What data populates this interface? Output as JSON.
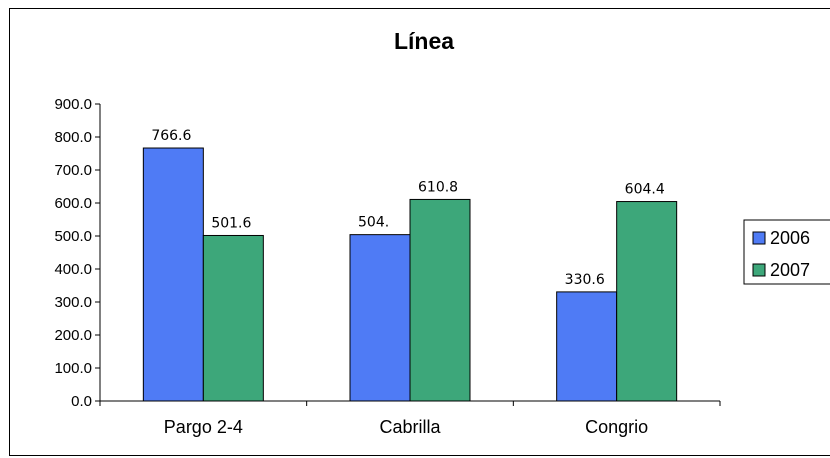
{
  "chart_data": {
    "type": "bar",
    "title": "Línea",
    "categories": [
      "Pargo 2-4",
      "Cabrilla",
      "Congrio"
    ],
    "series": [
      {
        "name": "2006",
        "values": [
          766.6,
          504.1,
          330.6
        ],
        "labels": [
          "766.6",
          "504.",
          "330.6"
        ],
        "color": "#4F7BF5"
      },
      {
        "name": "2007",
        "values": [
          501.6,
          610.8,
          604.4
        ],
        "labels": [
          "501.6",
          "610.8",
          "604.4"
        ],
        "color": "#3DA77A"
      }
    ],
    "ylim": [
      0,
      900
    ],
    "yticks": [
      "0.0",
      "100.0",
      "200.0",
      "300.0",
      "400.0",
      "500.0",
      "600.0",
      "700.0",
      "800.0",
      "900.0"
    ],
    "xlabel": "",
    "ylabel": "",
    "grid": false,
    "legend_position": "right"
  }
}
